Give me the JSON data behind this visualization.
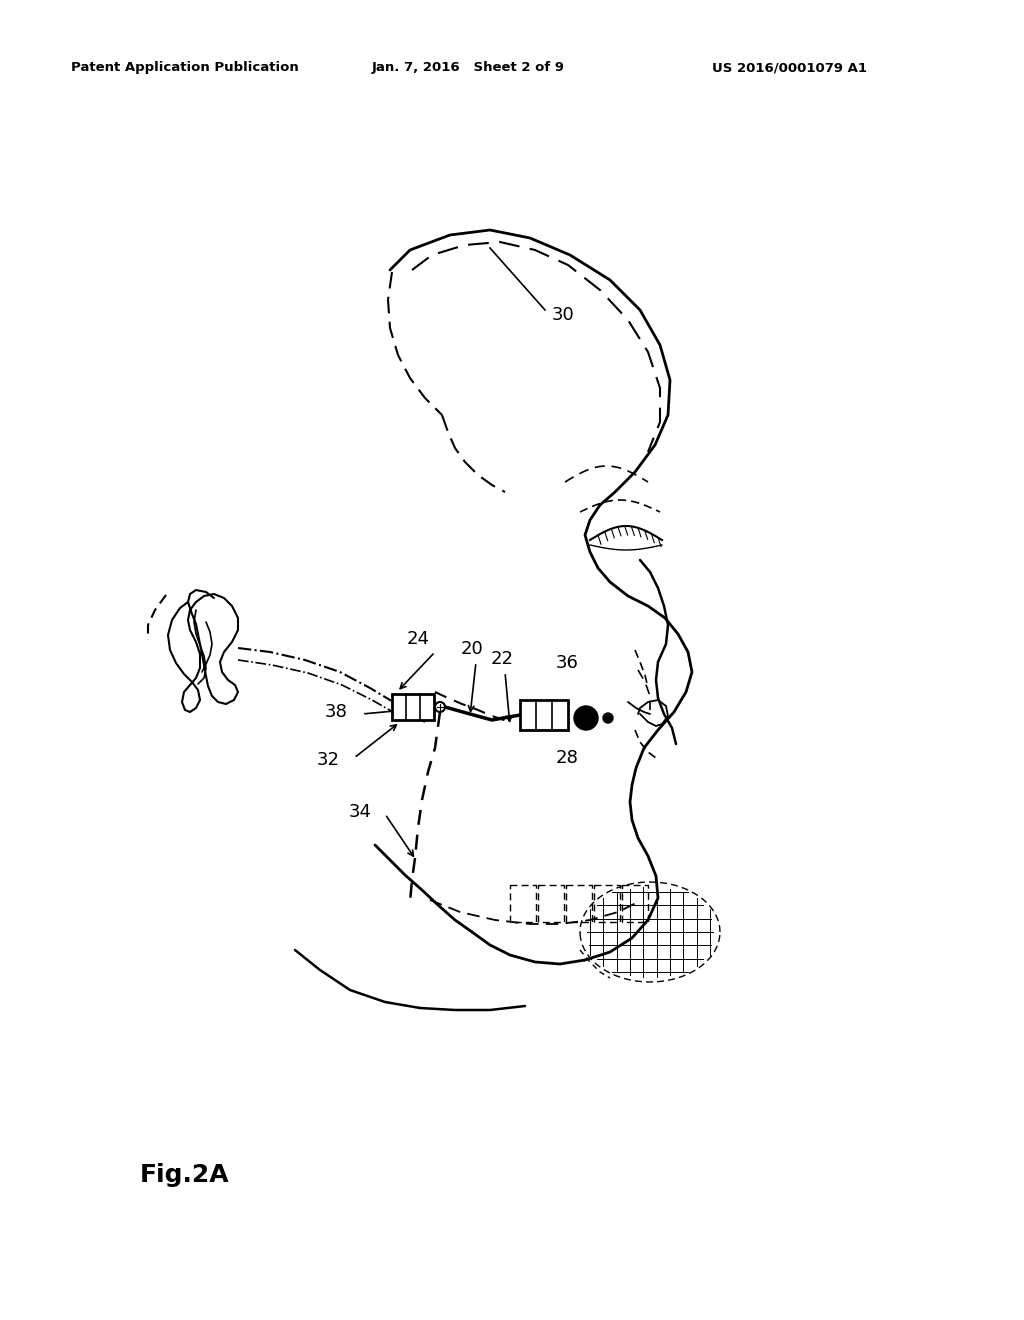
{
  "title_left": "Patent Application Publication",
  "title_mid": "Jan. 7, 2016   Sheet 2 of 9",
  "title_right": "US 2016/0001079 A1",
  "fig_label": "Fig.2A",
  "bg_color": "#ffffff",
  "line_color": "#000000"
}
